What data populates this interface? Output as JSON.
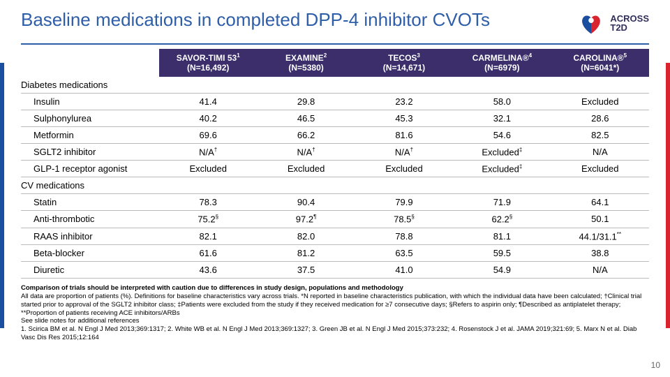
{
  "title": "Baseline medications in completed DPP‑4 inhibitor CVOTs",
  "logo": {
    "line1": "ACROSS",
    "line2": "T2D"
  },
  "pagenum": "10",
  "columns": [
    {
      "name": "SAVOR-TIMI 53",
      "sup": "1",
      "n": "(N=16,492)"
    },
    {
      "name": "EXAMINE",
      "sup": "2",
      "n": "(N=5380)"
    },
    {
      "name": "TECOS",
      "sup": "3",
      "n": "(N=14,671)"
    },
    {
      "name": "CARMELINA®",
      "sup": "4",
      "n": "(N=6979)"
    },
    {
      "name": "CAROLINA®",
      "sup": "5",
      "n": "(N=6041*)"
    }
  ],
  "sections": [
    {
      "label": "Diabetes medications",
      "rows": [
        {
          "label": "Insulin",
          "v": [
            "41.4",
            "29.8",
            "23.2",
            "58.0",
            "Excluded"
          ]
        },
        {
          "label": "Sulphonylurea",
          "v": [
            "40.2",
            "46.5",
            "45.3",
            "32.1",
            "28.6"
          ]
        },
        {
          "label": "Metformin",
          "v": [
            "69.6",
            "66.2",
            "81.6",
            "54.6",
            "82.5"
          ]
        },
        {
          "label": "SGLT2 inhibitor",
          "v": [
            "N/A†",
            "N/A†",
            "N/A†",
            "Excluded‡",
            "N/A"
          ]
        },
        {
          "label": "GLP-1 receptor agonist",
          "v": [
            "Excluded",
            "Excluded",
            "Excluded",
            "Excluded‡",
            "Excluded"
          ]
        }
      ]
    },
    {
      "label": "CV medications",
      "rows": [
        {
          "label": "Statin",
          "v": [
            "78.3",
            "90.4",
            "79.9",
            "71.9",
            "64.1"
          ]
        },
        {
          "label": "Anti-thrombotic",
          "v": [
            "75.2§",
            "97.2¶",
            "78.5§",
            "62.2§",
            "50.1"
          ]
        },
        {
          "label": "RAAS inhibitor",
          "v": [
            "82.1",
            "82.0",
            "78.8",
            "81.1",
            "44.1/31.1**"
          ]
        },
        {
          "label": "Beta-blocker",
          "v": [
            "61.6",
            "81.2",
            "63.5",
            "59.5",
            "38.8"
          ]
        },
        {
          "label": "Diuretic",
          "v": [
            "43.6",
            "37.5",
            "41.0",
            "54.9",
            "N/A"
          ]
        }
      ]
    }
  ],
  "footnotes": {
    "bold": "Comparison of trials should be interpreted with caution due to differences in study design, populations and methodology",
    "body": "All data are proportion of patients (%). Definitions for baseline characteristics vary across trials. *N reported in baseline characteristics publication, with which the individual data have been calculated; †Clinical trial started prior to approval of the SGLT2 inhibitor class; ‡Patients were excluded from the study if they received medication for ≥7 consecutive days; §Refers to aspirin only; ¶Described as antiplatelet therapy; **Proportion of patients receiving ACE inhibitors/ARBs",
    "seenote": "See slide notes for additional references",
    "refs": "1. Scirica BM et al. N Engl J Med 2013;369:1317; 2. White WB et al. N Engl J Med 2013;369:1327; 3. Green JB et al. N Engl J Med 2015;373:232; 4. Rosenstock J et al. JAMA 2019;321:69; 5. Marx N et al. Diab Vasc Dis Res 2015;12:164"
  },
  "colors": {
    "title": "#2f5ea8",
    "header_bg": "#3b2e6b",
    "stripe_blue": "#1a4fa0",
    "stripe_red": "#d9232e"
  }
}
